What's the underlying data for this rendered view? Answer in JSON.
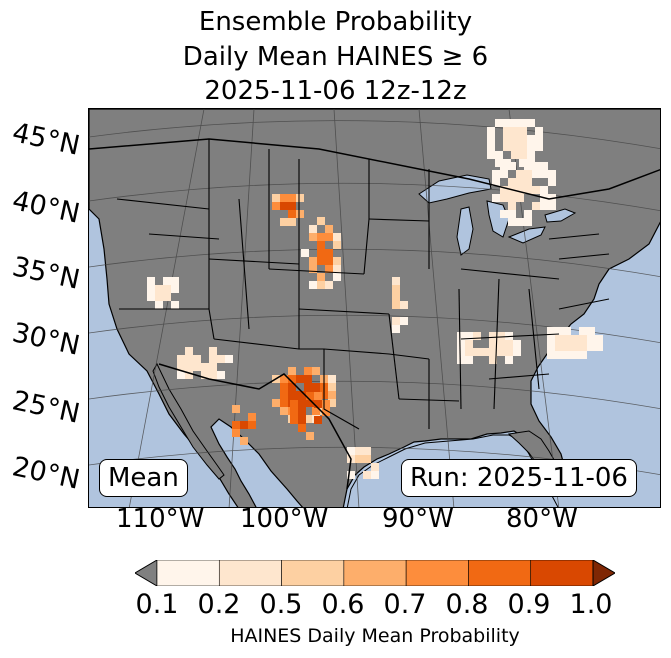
{
  "title": {
    "line1": "Ensemble Probability",
    "line2": "Daily Mean HAINES ≥ 6",
    "line3": "2025-11-06 12z-12z"
  },
  "map": {
    "lat_labels": [
      "45°N",
      "40°N",
      "35°N",
      "30°N",
      "25°N",
      "20°N"
    ],
    "lon_labels": [
      "110°W",
      "100°W",
      "90°W",
      "80°W"
    ],
    "badge_left": "Mean",
    "badge_right": "Run: 2025-11-06",
    "colors": {
      "ocean": "#b0c4de",
      "land_masked": "#7f7f7f",
      "border": "#000000",
      "graticule": "#444444"
    }
  },
  "colorbar": {
    "ticks": [
      "0.1",
      "0.2",
      "0.5",
      "0.6",
      "0.7",
      "0.8",
      "0.9",
      "1.0"
    ],
    "under_color": "#808080",
    "over_color": "#7f2704",
    "bin_colors": [
      "#fff5eb",
      "#fee6ce",
      "#fdd0a2",
      "#fdae6b",
      "#fd8d3c",
      "#f16913",
      "#d94801"
    ],
    "label": "HAINES Daily Mean Probability"
  }
}
